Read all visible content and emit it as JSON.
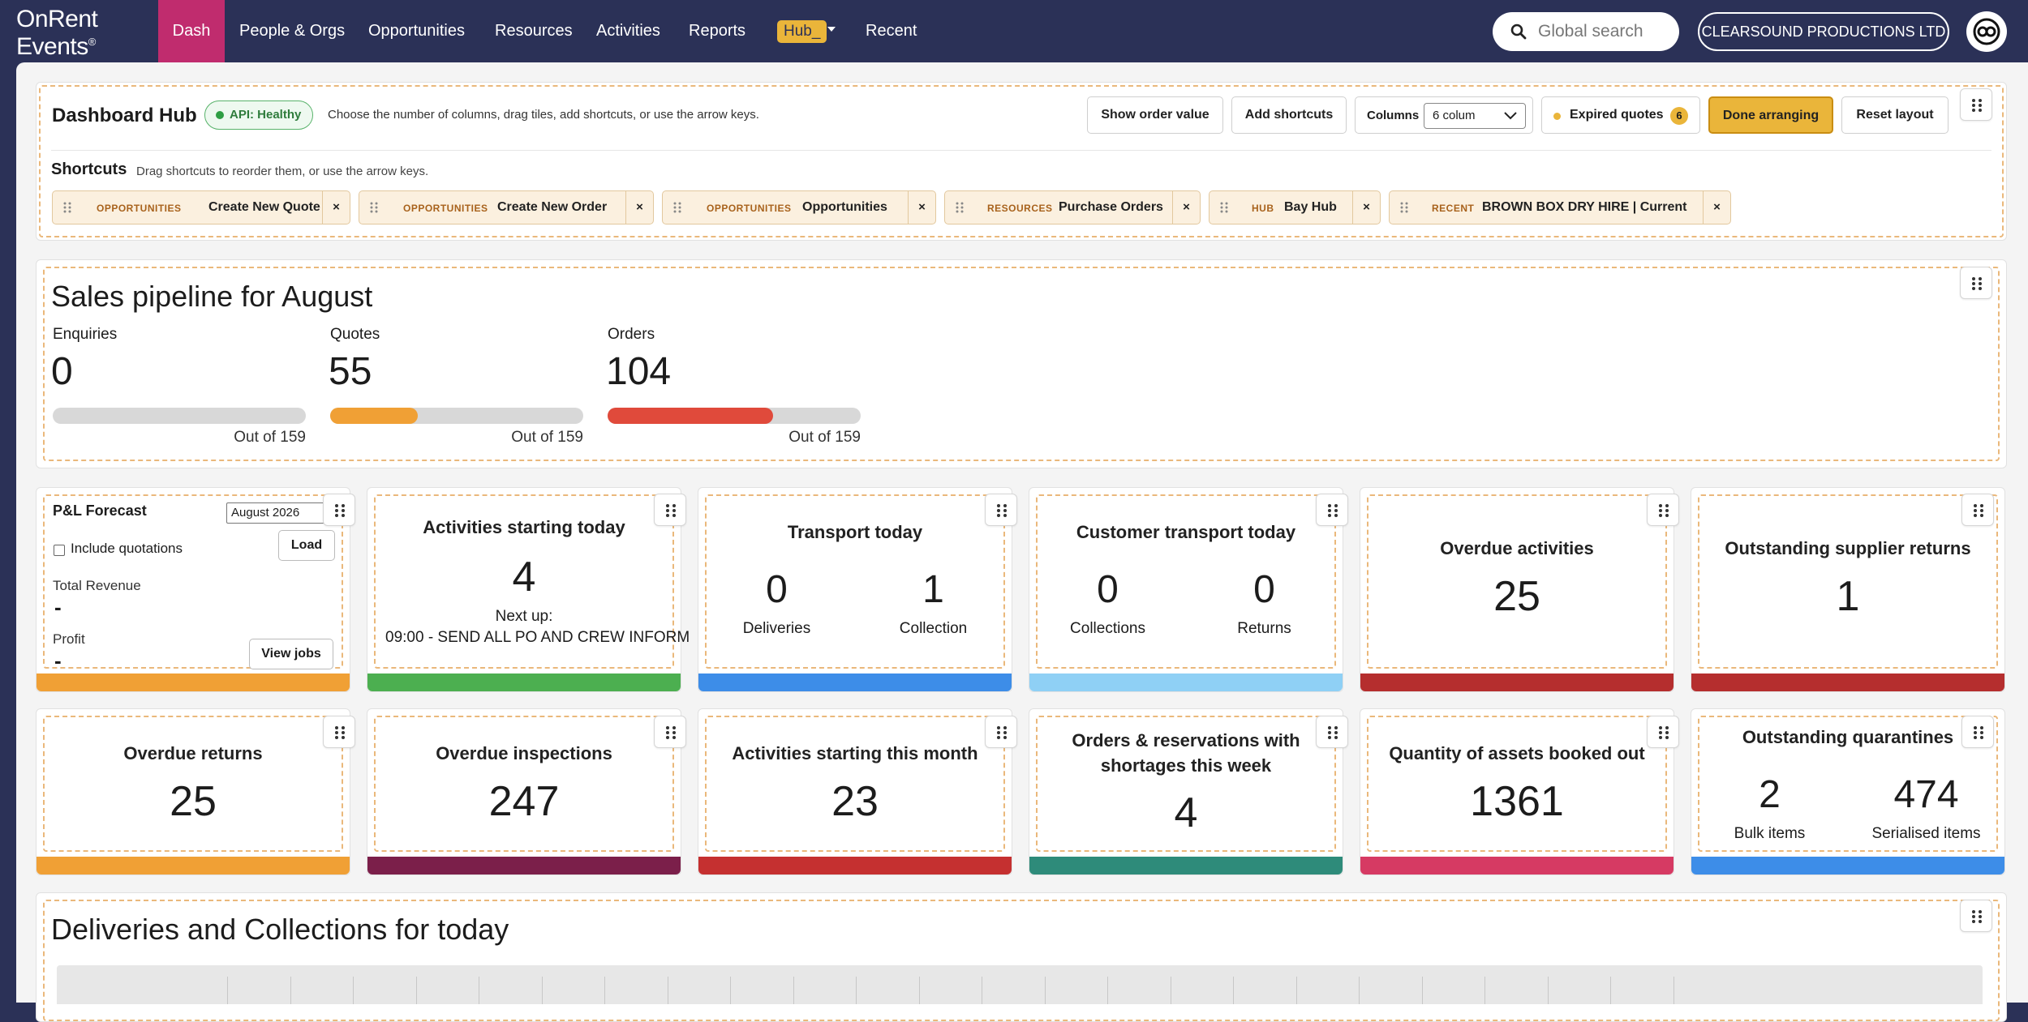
{
  "nav": {
    "logo_line1": "OnRent",
    "logo_line2": "Events",
    "logo_reg": "®",
    "items": [
      {
        "label": "Dash",
        "active": true
      },
      {
        "label": "People & Orgs"
      },
      {
        "label": "Opportunities"
      },
      {
        "label": "Resources"
      },
      {
        "label": "Activities"
      },
      {
        "label": "Reports"
      },
      {
        "label": "Hub_"
      },
      {
        "label": "Recent"
      }
    ],
    "search_placeholder": "Global search",
    "company": "CLEARSOUND PRODUCTIONS LTD",
    "accent": "#c02c6e"
  },
  "hub": {
    "title": "Dashboard Hub",
    "api_status": "API: Healthy",
    "hint": "Choose the number of columns, drag tiles, add shortcuts, or use the arrow keys.",
    "show_order_value": "Show order value",
    "add_shortcuts": "Add shortcuts",
    "columns_label": "Columns",
    "columns_value": "6 colum",
    "expired_quotes_label": "Expired quotes",
    "expired_quotes_count": "6",
    "done_arranging": "Done arranging",
    "reset_layout": "Reset layout",
    "shortcuts_title": "Shortcuts",
    "shortcuts_hint": "Drag shortcuts to reorder them, or use the arrow keys.",
    "shortcuts": [
      {
        "category": "OPPORTUNITIES",
        "name": "Create New Quote"
      },
      {
        "category": "OPPORTUNITIES",
        "name": "Create New Order"
      },
      {
        "category": "OPPORTUNITIES",
        "name": "Opportunities"
      },
      {
        "category": "RESOURCES",
        "name": "Purchase Orders"
      },
      {
        "category": "HUB",
        "name": "Bay Hub"
      },
      {
        "category": "RECENT",
        "name": "BROWN BOX DRY HIRE | Current"
      }
    ],
    "remove_glyph": "×"
  },
  "pipeline": {
    "title": "Sales pipeline for August",
    "stats": [
      {
        "label": "Enquiries",
        "value": "0",
        "out_of": "Out of 159",
        "fraction": 0,
        "color": "#9e9e9e"
      },
      {
        "label": "Quotes",
        "value": "55",
        "out_of": "Out of 159",
        "fraction": 0.346,
        "color": "#f0a035"
      },
      {
        "label": "Orders",
        "value": "104",
        "out_of": "Out of 159",
        "fraction": 0.654,
        "color": "#e04a3b"
      }
    ]
  },
  "pl_forecast": {
    "title": "P&L Forecast",
    "month": "August 2026",
    "include_quotations": "Include quotations",
    "load": "Load",
    "total_revenue_label": "Total Revenue",
    "total_revenue_value": "-",
    "profit_label": "Profit",
    "profit_value": "-",
    "view_jobs": "View jobs",
    "color": "#f0a035"
  },
  "tiles_row1": {
    "activities_today": {
      "title": "Activities starting today",
      "value": "4",
      "next_label": "Next up:",
      "next_text": "09:00 - SEND ALL PO AND CREW INFORM",
      "color": "#4caf50"
    },
    "transport_today": {
      "title": "Transport today",
      "left_value": "0",
      "left_label": "Deliveries",
      "right_value": "1",
      "right_label": "Collection",
      "color": "#3d8de8"
    },
    "customer_transport": {
      "title": "Customer transport today",
      "left_value": "0",
      "left_label": "Collections",
      "right_value": "0",
      "right_label": "Returns",
      "color": "#8fd0f5"
    },
    "overdue_activities": {
      "title": "Overdue activities",
      "value": "25",
      "color": "#b52e2e"
    },
    "outstanding_supplier_returns": {
      "title": "Outstanding supplier returns",
      "value": "1",
      "color": "#b52e2e"
    }
  },
  "tiles_row2": {
    "overdue_returns": {
      "title": "Overdue returns",
      "value": "25",
      "color": "#f0a035"
    },
    "overdue_inspections": {
      "title": "Overdue inspections",
      "value": "247",
      "color": "#7b1f4a"
    },
    "activities_month": {
      "title": "Activities starting this month",
      "value": "23",
      "color": "#c53030"
    },
    "shortages": {
      "title_line1": "Orders & reservations with",
      "title_line2": "shortages this week",
      "value": "4",
      "color": "#2e8b7a"
    },
    "assets_booked_out": {
      "title": "Quantity of assets booked out",
      "value": "1361",
      "color": "#d63a63"
    },
    "quarantines": {
      "title": "Outstanding quarantines",
      "left_value": "2",
      "left_label": "Bulk items",
      "right_value": "474",
      "right_label": "Serialised items",
      "color": "#3d8de8"
    }
  },
  "deliveries": {
    "title": "Deliveries and Collections for today"
  }
}
